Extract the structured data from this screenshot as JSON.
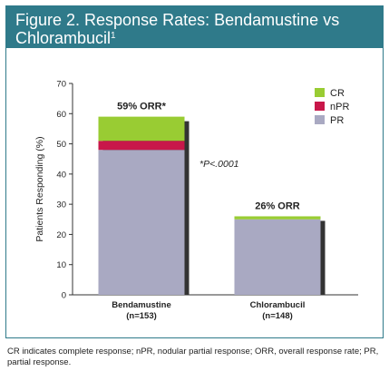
{
  "figure": {
    "title": "Figure 2. Response Rates: Bendamustine vs Chlorambucil",
    "title_line1": "Figure 2. Response Rates: Bendamustine vs",
    "title_line2": "Chlorambucil",
    "title_ref": "1",
    "caption": "CR indicates complete response; nPR, nodular partial response; ORR, overall response rate; PR, partial response."
  },
  "chart_data": {
    "type": "bar",
    "stacked": true,
    "categories": [
      "Bendamustine",
      "Chlorambucil"
    ],
    "category_sublabels": [
      "(n=153)",
      "(n=148)"
    ],
    "series": [
      {
        "name": "PR",
        "values": [
          48,
          25
        ],
        "color": "#a9a9c2"
      },
      {
        "name": "nPR",
        "values": [
          3,
          0
        ],
        "color": "#c8174a"
      },
      {
        "name": "CR",
        "values": [
          8,
          1
        ],
        "color": "#99cc33"
      }
    ],
    "totals_labels": [
      "59% ORR*",
      "26% ORR"
    ],
    "annotation": "*P<.0001",
    "ylabel": "Patients Responding (%)",
    "ylim": [
      0,
      70
    ],
    "yticks": [
      0,
      10,
      20,
      30,
      40,
      50,
      60,
      70
    ],
    "legend_position": "top-right",
    "grid": false
  }
}
